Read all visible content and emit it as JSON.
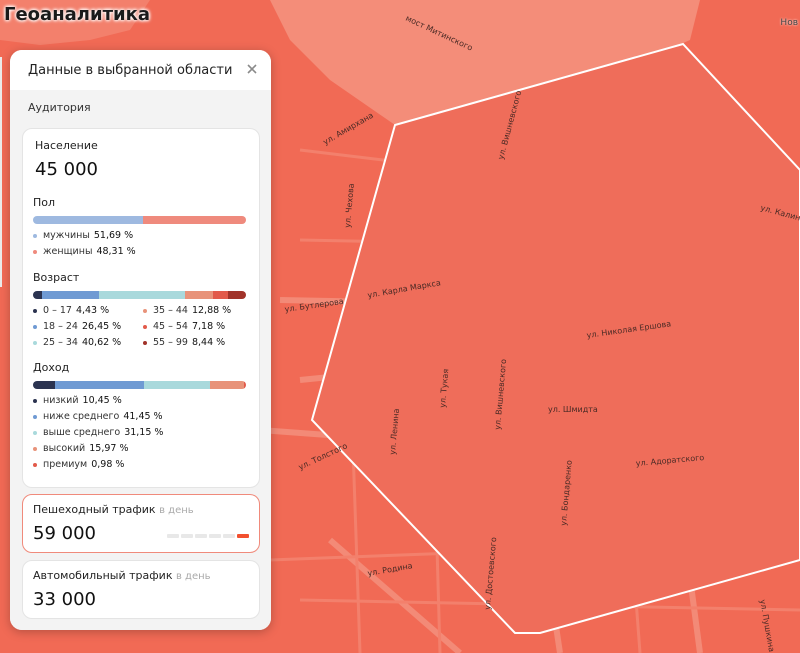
{
  "app": {
    "title": "Геоаналитика"
  },
  "map": {
    "corner_label": "Нов",
    "streets": [
      "мост Митинского",
      "ул. Вишневского",
      "ул. Карла Маркса",
      "ул. Николая Ершова",
      "ул. Вишневского",
      "ул. Шмидта",
      "ул. Адоратского",
      "ул. Бондаренко",
      "ул. Чехова",
      "ул. Тукая",
      "ул. Амирхана",
      "ул. Родина",
      "ул. Ленина",
      "ул. Калинина",
      "ул. Пушкина",
      "ул. Бутлерова",
      "ул. Достоевского",
      "ул. Толстого"
    ],
    "colors": {
      "base": "#f16a55",
      "selection": "#ef6c58",
      "outline": "#ffffff"
    }
  },
  "panel": {
    "title": "Данные в выбранной области",
    "audience_section": "Аудитория",
    "population": {
      "label": "Население",
      "value": "45 000"
    },
    "gender": {
      "label": "Пол",
      "items": [
        {
          "name": "мужчины",
          "value": "51,69 %",
          "share": 51.69,
          "color": "#9eb9e0"
        },
        {
          "name": "женщины",
          "value": "48,31 %",
          "share": 48.31,
          "color": "#ef8a7d"
        }
      ]
    },
    "age": {
      "label": "Возраст",
      "items": [
        {
          "name": "0 – 17",
          "value": "4,43 %",
          "share": 4.43,
          "color": "#2b3350"
        },
        {
          "name": "18 – 24",
          "value": "26,45 %",
          "share": 26.45,
          "color": "#6f9ad3"
        },
        {
          "name": "25 – 34",
          "value": "40,62 %",
          "share": 40.62,
          "color": "#a9d9dc"
        },
        {
          "name": "35 – 44",
          "value": "12,88 %",
          "share": 12.88,
          "color": "#e8937a"
        },
        {
          "name": "45 – 54",
          "value": "7,18 %",
          "share": 7.18,
          "color": "#e25a4a"
        },
        {
          "name": "55 – 99",
          "value": "8,44 %",
          "share": 8.44,
          "color": "#a1332a"
        }
      ]
    },
    "income": {
      "label": "Доход",
      "items": [
        {
          "name": "низкий",
          "value": "10,45 %",
          "share": 10.45,
          "color": "#2b3350"
        },
        {
          "name": "ниже среднего",
          "value": "41,45 %",
          "share": 41.45,
          "color": "#6f9ad3"
        },
        {
          "name": "выше среднего",
          "value": "31,15 %",
          "share": 31.15,
          "color": "#a9d9dc"
        },
        {
          "name": "высокий",
          "value": "15,97 %",
          "share": 15.97,
          "color": "#e8937a"
        },
        {
          "name": "премиум",
          "value": "0,98 %",
          "share": 0.98,
          "color": "#e25a4a"
        }
      ]
    },
    "pedestrian": {
      "label": "Пешеходный трафик",
      "period": "в день",
      "value": "59 000",
      "level": 6,
      "level_max": 6
    },
    "auto": {
      "label": "Автомобильный трафик",
      "period": "в день",
      "value": "33 000"
    }
  }
}
